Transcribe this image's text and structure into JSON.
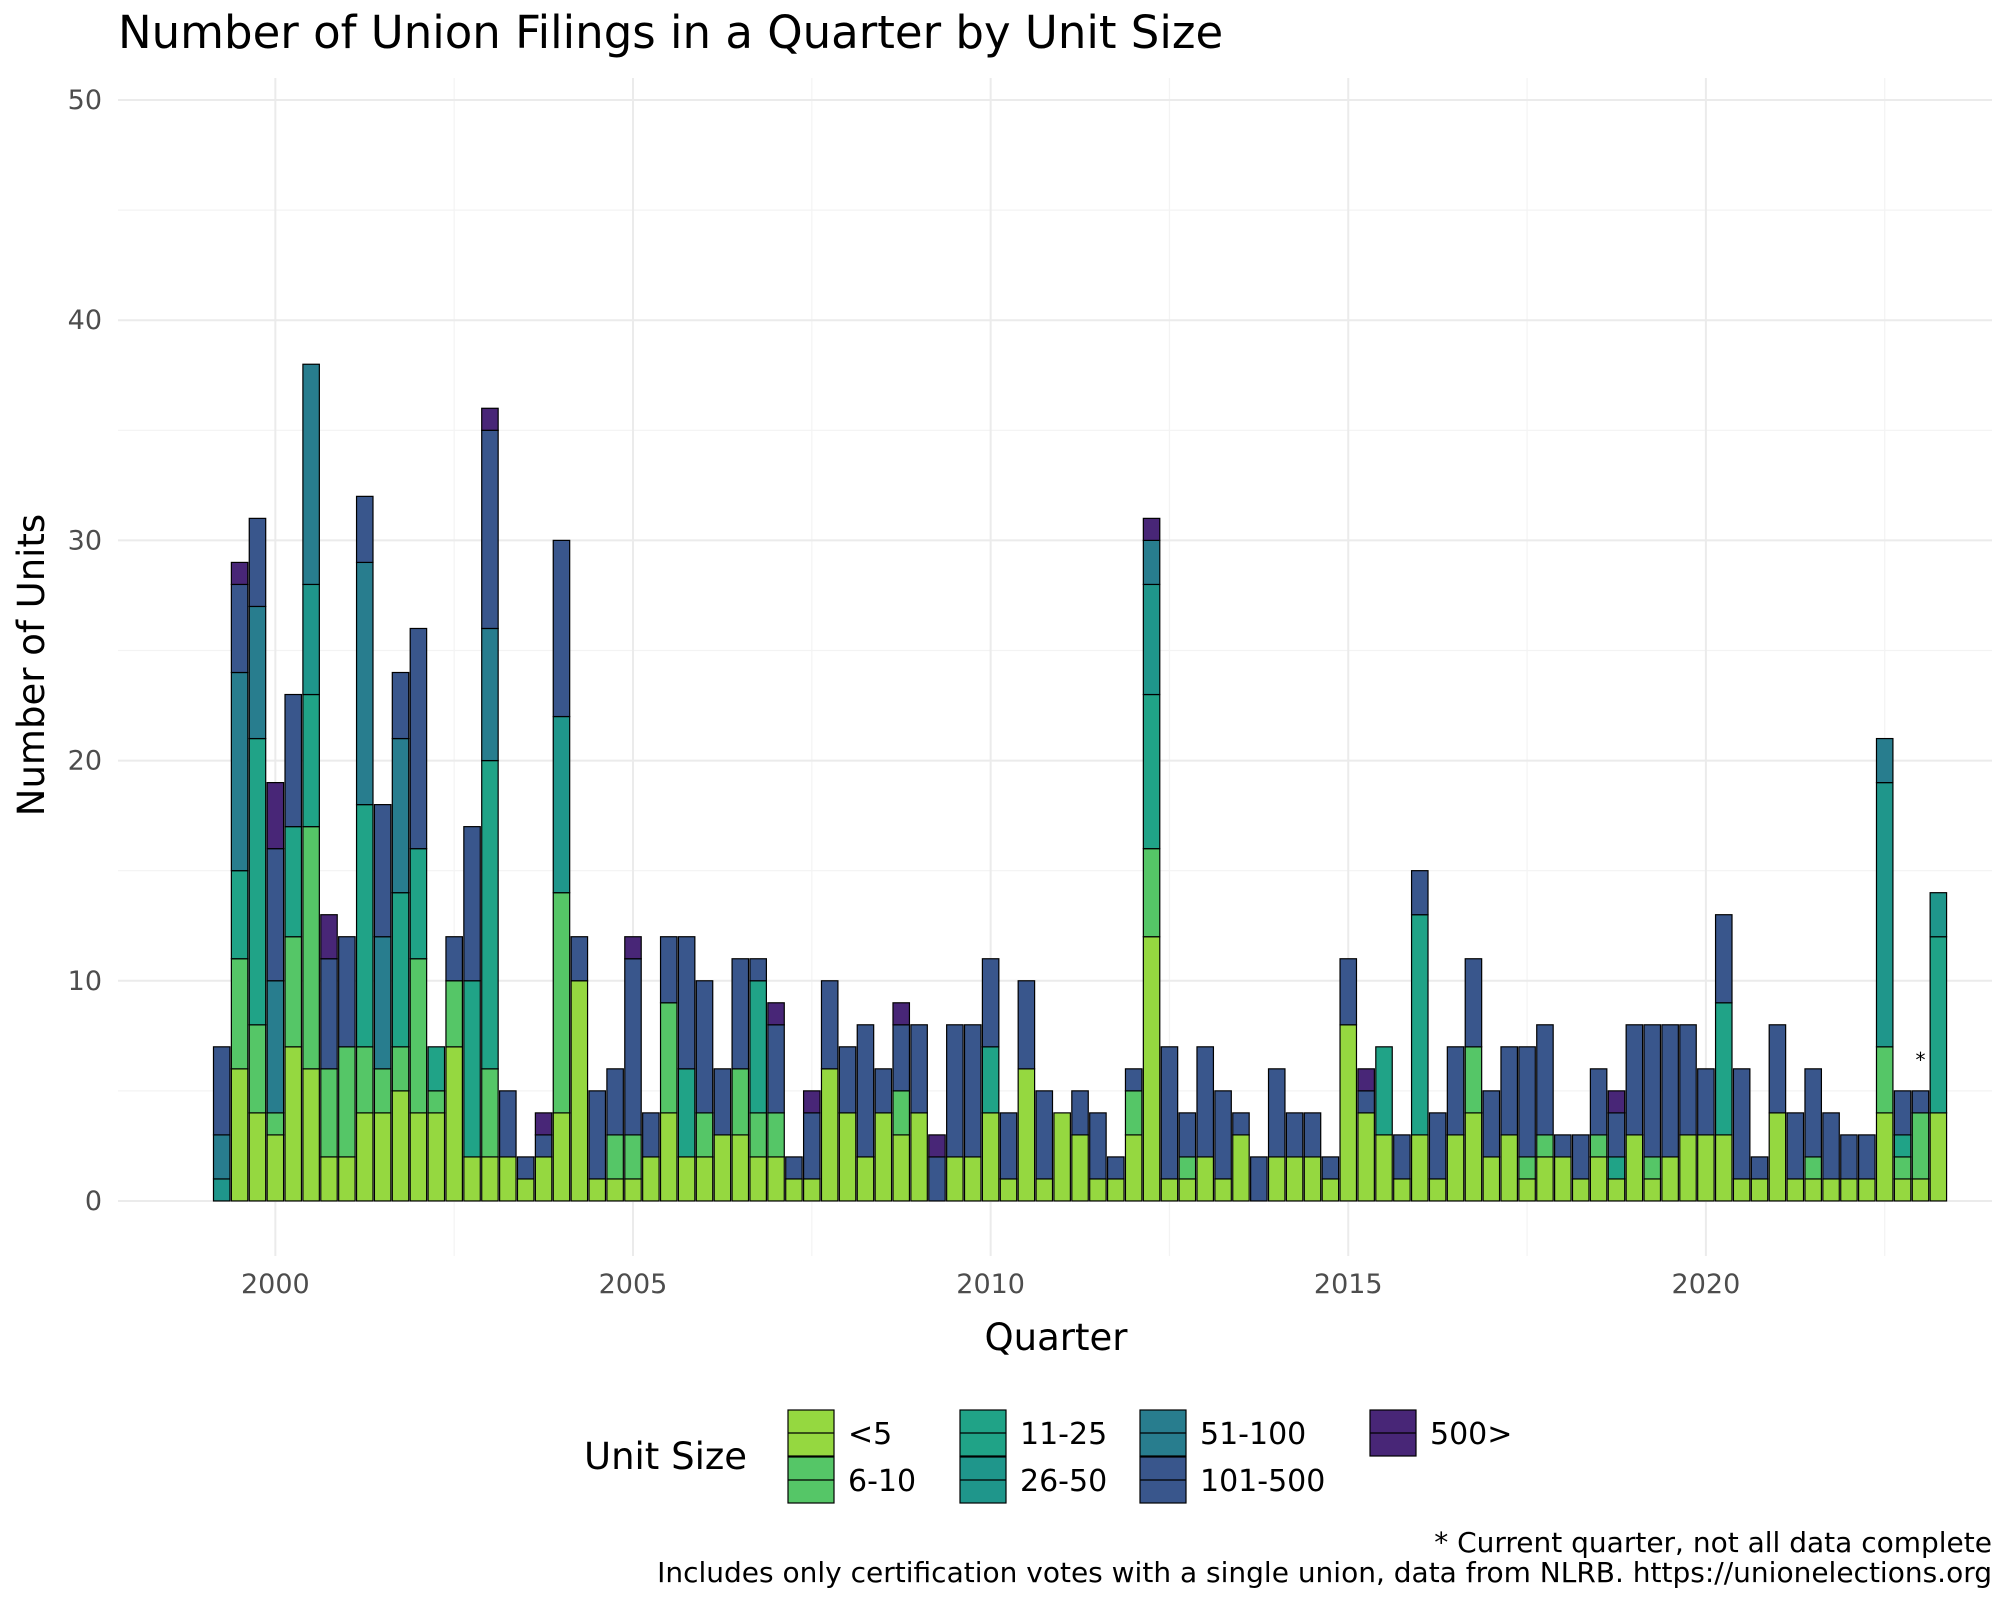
{
  "chart_data": {
    "type": "bar",
    "stacked": true,
    "title": "Number of Union Filings in a Quarter by Unit Size",
    "xlabel": "Quarter",
    "ylabel": "Number of Units",
    "ylim": [
      -2.5,
      51
    ],
    "xlim": [
      1997.8,
      2024.0
    ],
    "yticks": [
      0,
      10,
      20,
      30,
      40,
      50
    ],
    "xticks": [
      2000,
      2005,
      2010,
      2015,
      2020
    ],
    "x_minor_ticks": [
      2002.5,
      2007.5,
      2012.5,
      2017.5,
      2022.5
    ],
    "y_minor_ticks": [
      5,
      15,
      25,
      35,
      45
    ],
    "grid": true,
    "legend_title": "Unit Size",
    "legend_position": "bottom",
    "bar_annotation": {
      "x_index": 95,
      "text": "*"
    },
    "caption_line1": "* Current quarter, not all data complete",
    "caption_line2": "Includes only certification votes with a single union, data from NLRB. https://unionelections.org",
    "series": [
      {
        "name": "<5",
        "color": "#95d840",
        "values": [
          0,
          6,
          4,
          3,
          7,
          6,
          2,
          2,
          4,
          4,
          5,
          4,
          4,
          7,
          2,
          2,
          2,
          1,
          2,
          4,
          10,
          1,
          1,
          1,
          2,
          4,
          2,
          2,
          3,
          3,
          2,
          2,
          1,
          1,
          6,
          4,
          2,
          4,
          3,
          4,
          0,
          2,
          2,
          4,
          1,
          6,
          1,
          4,
          3,
          1,
          1,
          3,
          12,
          1,
          1,
          2,
          1,
          3,
          0,
          2,
          2,
          2,
          1,
          8,
          4,
          3,
          1,
          3,
          1,
          3,
          4,
          2,
          3,
          1,
          2,
          2,
          1,
          2,
          1,
          3,
          1,
          2,
          3,
          3,
          3,
          1,
          1,
          4,
          1,
          1,
          1,
          1,
          1,
          4,
          1,
          1,
          4
        ]
      },
      {
        "name": "6-10",
        "color": "#55c667",
        "values": [
          0,
          5,
          4,
          1,
          5,
          11,
          4,
          5,
          3,
          2,
          2,
          7,
          1,
          3,
          0,
          4,
          0,
          0,
          0,
          10,
          0,
          0,
          2,
          2,
          0,
          5,
          0,
          2,
          0,
          3,
          2,
          2,
          0,
          0,
          0,
          0,
          0,
          0,
          2,
          0,
          0,
          0,
          0,
          0,
          0,
          0,
          0,
          0,
          0,
          0,
          0,
          2,
          4,
          0,
          1,
          0,
          0,
          0,
          0,
          0,
          0,
          0,
          0,
          0,
          0,
          0,
          0,
          0,
          0,
          0,
          3,
          0,
          0,
          1,
          1,
          0,
          0,
          1,
          0,
          0,
          1,
          0,
          0,
          0,
          0,
          0,
          0,
          0,
          0,
          1,
          0,
          0,
          0,
          3,
          1,
          3,
          0
        ]
      },
      {
        "name": "11-25",
        "color": "#20a387",
        "values": [
          0,
          4,
          13,
          0,
          5,
          6,
          0,
          0,
          11,
          0,
          7,
          5,
          2,
          0,
          8,
          14,
          0,
          0,
          0,
          0,
          0,
          0,
          0,
          0,
          0,
          0,
          4,
          0,
          0,
          0,
          6,
          0,
          0,
          0,
          0,
          0,
          0,
          0,
          0,
          0,
          0,
          0,
          0,
          3,
          0,
          0,
          0,
          0,
          0,
          0,
          0,
          0,
          7,
          0,
          0,
          0,
          0,
          0,
          0,
          0,
          0,
          0,
          0,
          0,
          0,
          4,
          0,
          10,
          0,
          0,
          0,
          0,
          0,
          0,
          0,
          0,
          0,
          0,
          1,
          0,
          0,
          0,
          0,
          0,
          6,
          0,
          0,
          0,
          0,
          0,
          0,
          0,
          0,
          0,
          1,
          0,
          8
        ]
      },
      {
        "name": "26-50",
        "color": "#1f968b",
        "values": [
          1,
          0,
          0,
          0,
          0,
          5,
          0,
          0,
          0,
          0,
          0,
          0,
          0,
          0,
          0,
          0,
          0,
          0,
          0,
          8,
          0,
          0,
          0,
          0,
          0,
          0,
          0,
          0,
          0,
          0,
          0,
          0,
          0,
          0,
          0,
          0,
          0,
          0,
          0,
          0,
          0,
          0,
          0,
          0,
          0,
          0,
          0,
          0,
          0,
          0,
          0,
          0,
          5,
          0,
          0,
          0,
          0,
          0,
          0,
          0,
          0,
          0,
          0,
          0,
          0,
          0,
          0,
          0,
          0,
          0,
          0,
          0,
          0,
          0,
          0,
          0,
          0,
          0,
          0,
          0,
          0,
          0,
          0,
          0,
          0,
          0,
          0,
          0,
          0,
          0,
          0,
          0,
          0,
          12,
          0,
          0,
          2
        ]
      },
      {
        "name": "51-100",
        "color": "#287d8e",
        "values": [
          2,
          9,
          6,
          6,
          0,
          10,
          0,
          0,
          11,
          6,
          7,
          0,
          0,
          0,
          0,
          6,
          0,
          0,
          0,
          0,
          0,
          0,
          0,
          0,
          0,
          0,
          0,
          0,
          0,
          0,
          0,
          0,
          0,
          0,
          0,
          0,
          0,
          0,
          0,
          0,
          0,
          0,
          0,
          0,
          0,
          0,
          0,
          0,
          0,
          0,
          0,
          0,
          2,
          0,
          0,
          0,
          0,
          0,
          0,
          0,
          0,
          0,
          0,
          0,
          0,
          0,
          0,
          0,
          0,
          0,
          0,
          0,
          0,
          0,
          0,
          0,
          0,
          0,
          0,
          0,
          0,
          0,
          0,
          0,
          0,
          0,
          0,
          0,
          0,
          0,
          0,
          0,
          0,
          2,
          0,
          0,
          0
        ]
      },
      {
        "name": "101-500",
        "color": "#39568c",
        "values": [
          4,
          4,
          4,
          6,
          6,
          0,
          5,
          5,
          3,
          6,
          3,
          10,
          0,
          2,
          7,
          9,
          3,
          1,
          1,
          8,
          2,
          4,
          3,
          8,
          2,
          3,
          6,
          6,
          3,
          5,
          1,
          4,
          1,
          3,
          4,
          3,
          6,
          2,
          3,
          4,
          2,
          6,
          6,
          4,
          3,
          4,
          4,
          0,
          2,
          3,
          1,
          1,
          0,
          6,
          2,
          5,
          4,
          1,
          2,
          4,
          2,
          2,
          1,
          3,
          1,
          0,
          2,
          2,
          3,
          4,
          4,
          3,
          4,
          5,
          5,
          1,
          2,
          3,
          2,
          5,
          6,
          6,
          5,
          3,
          4,
          5,
          1,
          4,
          3,
          4,
          3,
          2,
          2,
          0,
          2,
          1,
          0
        ]
      },
      {
        "name": "500>",
        "color": "#482677",
        "values": [
          0,
          1,
          0,
          3,
          0,
          0,
          2,
          0,
          0,
          0,
          0,
          0,
          0,
          0,
          0,
          1,
          0,
          0,
          1,
          0,
          0,
          0,
          0,
          1,
          0,
          0,
          0,
          0,
          0,
          0,
          0,
          1,
          0,
          1,
          0,
          0,
          0,
          0,
          1,
          0,
          1,
          0,
          0,
          0,
          0,
          0,
          0,
          0,
          0,
          0,
          0,
          0,
          1,
          0,
          0,
          0,
          0,
          0,
          0,
          0,
          0,
          0,
          0,
          0,
          1,
          0,
          0,
          0,
          0,
          0,
          0,
          0,
          0,
          0,
          0,
          0,
          0,
          0,
          1,
          0,
          0,
          0,
          0,
          0,
          0,
          0,
          0,
          0,
          0,
          0,
          0,
          0,
          0,
          0,
          0,
          0,
          0
        ]
      }
    ]
  }
}
